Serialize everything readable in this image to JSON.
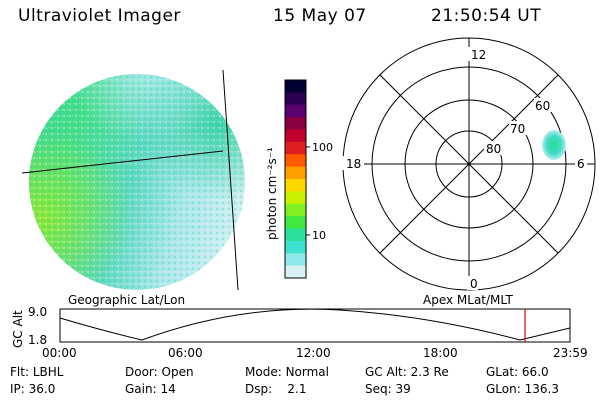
{
  "header": {
    "instrument": "Ultraviolet Imager",
    "date": "15 May 07",
    "time": "21:50:54 UT"
  },
  "colorbar": {
    "unit_label": "photon cm⁻²s⁻¹",
    "scale": "log",
    "ticks": [
      "100",
      "10"
    ],
    "colors": [
      "#000033",
      "#2a0050",
      "#5a0070",
      "#8a0040",
      "#c0002a",
      "#e02020",
      "#ff5a00",
      "#ffa000",
      "#ffd800",
      "#c8f000",
      "#80f020",
      "#40e840",
      "#2ae09a",
      "#40e0d0",
      "#90e8ea",
      "#d8f2f4"
    ]
  },
  "polar": {
    "mlt_labels": [
      "12",
      "18",
      "6",
      "0"
    ],
    "mlat_labels": [
      "60",
      "70",
      "80"
    ]
  },
  "labels": {
    "geographic": "Geographic Lat/Lon",
    "apex": "Apex MLat/MLT"
  },
  "altitude_plot": {
    "axis_label": "GC Alt",
    "y_ticks": [
      "9.0",
      "1.8"
    ],
    "x_ticks": [
      "00:00",
      "06:00",
      "12:00",
      "18:00",
      "23:59"
    ],
    "marker_color": "#e00000"
  },
  "footer": {
    "row1": [
      {
        "label": "Flt:",
        "value": "LBHL"
      },
      {
        "label": "Door:",
        "value": "Open"
      },
      {
        "label": "Mode:",
        "value": "Normal"
      },
      {
        "label": "GC Alt:",
        "value": "2.3 Re"
      },
      {
        "label": "GLat:",
        "value": "66.0"
      }
    ],
    "row2": [
      {
        "label": "IP:",
        "value": "36.0"
      },
      {
        "label": "Gain:",
        "value": "14"
      },
      {
        "label": "Dsp:",
        "value": "2.1"
      },
      {
        "label": "Seq:",
        "value": "39"
      },
      {
        "label": "GLon:",
        "value": "136.3"
      }
    ]
  },
  "image_colors": {
    "green": "#40e080",
    "cyan": "#40d8d0",
    "pale": "#c8eef0",
    "yellow_green": "#88e830"
  }
}
